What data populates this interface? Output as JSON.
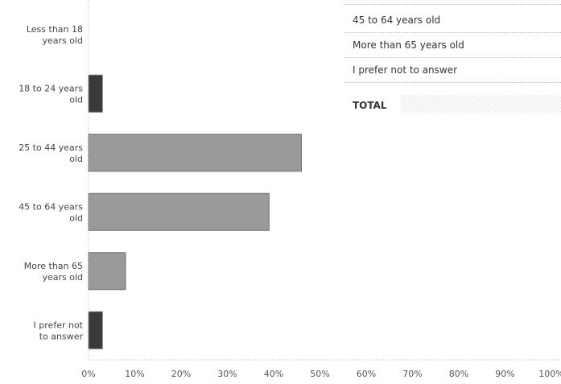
{
  "chart_data": {
    "type": "bar",
    "orientation": "horizontal",
    "categories": [
      "Less than 18 years old",
      "18 to 24 years old",
      "25 to 44 years old",
      "45 to 64 years old",
      "More than 65 years old",
      "I prefer not to answer"
    ],
    "category_lines": [
      [
        "Less than 18",
        "years old"
      ],
      [
        "18 to 24 years",
        "old"
      ],
      [
        "25 to 44 years",
        "old"
      ],
      [
        "45 to 64 years",
        "old"
      ],
      [
        "More than 65",
        "years old"
      ],
      [
        "I prefer not",
        "to answer"
      ]
    ],
    "values": [
      0,
      3,
      46,
      39,
      8,
      3
    ],
    "xlim": [
      0,
      100
    ],
    "xticks": [
      "0%",
      "10%",
      "20%",
      "30%",
      "40%",
      "50%",
      "60%",
      "70%",
      "80%",
      "90%",
      "100%"
    ],
    "colors": [
      "#555555",
      "#3a3a3a",
      "#9a9a9a",
      "#9a9a9a",
      "#9a9a9a",
      "#3a3a3a"
    ],
    "grid": false,
    "title": "",
    "xlabel": "",
    "ylabel": ""
  },
  "table": {
    "rows": [
      {
        "label": "45 to 64 years old"
      },
      {
        "label": "More than 65 years old"
      },
      {
        "label": "I prefer not to answer"
      },
      {
        "label": "TOTAL"
      }
    ]
  }
}
